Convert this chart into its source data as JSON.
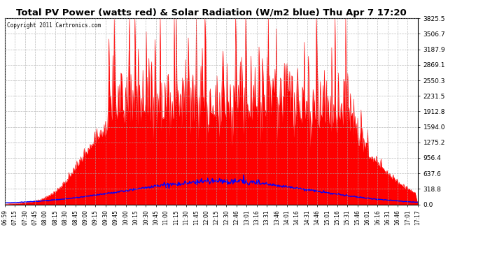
{
  "title": "Total PV Power (watts red) & Solar Radiation (W/m2 blue) Thu Apr 7 17:20",
  "copyright": "Copyright 2011 Cartronics.com",
  "yticks": [
    0.0,
    318.8,
    637.6,
    956.4,
    1275.2,
    1594.0,
    1912.8,
    2231.5,
    2550.3,
    2869.1,
    3187.9,
    3506.7,
    3825.5
  ],
  "ymax": 3825.5,
  "ymin": 0.0,
  "pv_color": "#ff0000",
  "solar_color": "#0000ff",
  "bg_color": "#ffffff",
  "xtick_labels": [
    "06:59",
    "07:15",
    "07:30",
    "07:45",
    "08:00",
    "08:15",
    "08:30",
    "08:45",
    "09:00",
    "09:15",
    "09:30",
    "09:45",
    "10:00",
    "10:15",
    "10:30",
    "10:45",
    "11:00",
    "11:15",
    "11:30",
    "11:45",
    "12:00",
    "12:15",
    "12:30",
    "12:46",
    "13:01",
    "13:16",
    "13:31",
    "13:46",
    "14:01",
    "14:16",
    "14:31",
    "14:46",
    "15:01",
    "15:16",
    "15:31",
    "15:46",
    "16:01",
    "16:16",
    "16:31",
    "16:46",
    "17:01",
    "17:17"
  ],
  "n_points": 620,
  "pv_envelope_peak": 1600,
  "pv_spike_max": 3825.5,
  "solar_peak": 480
}
